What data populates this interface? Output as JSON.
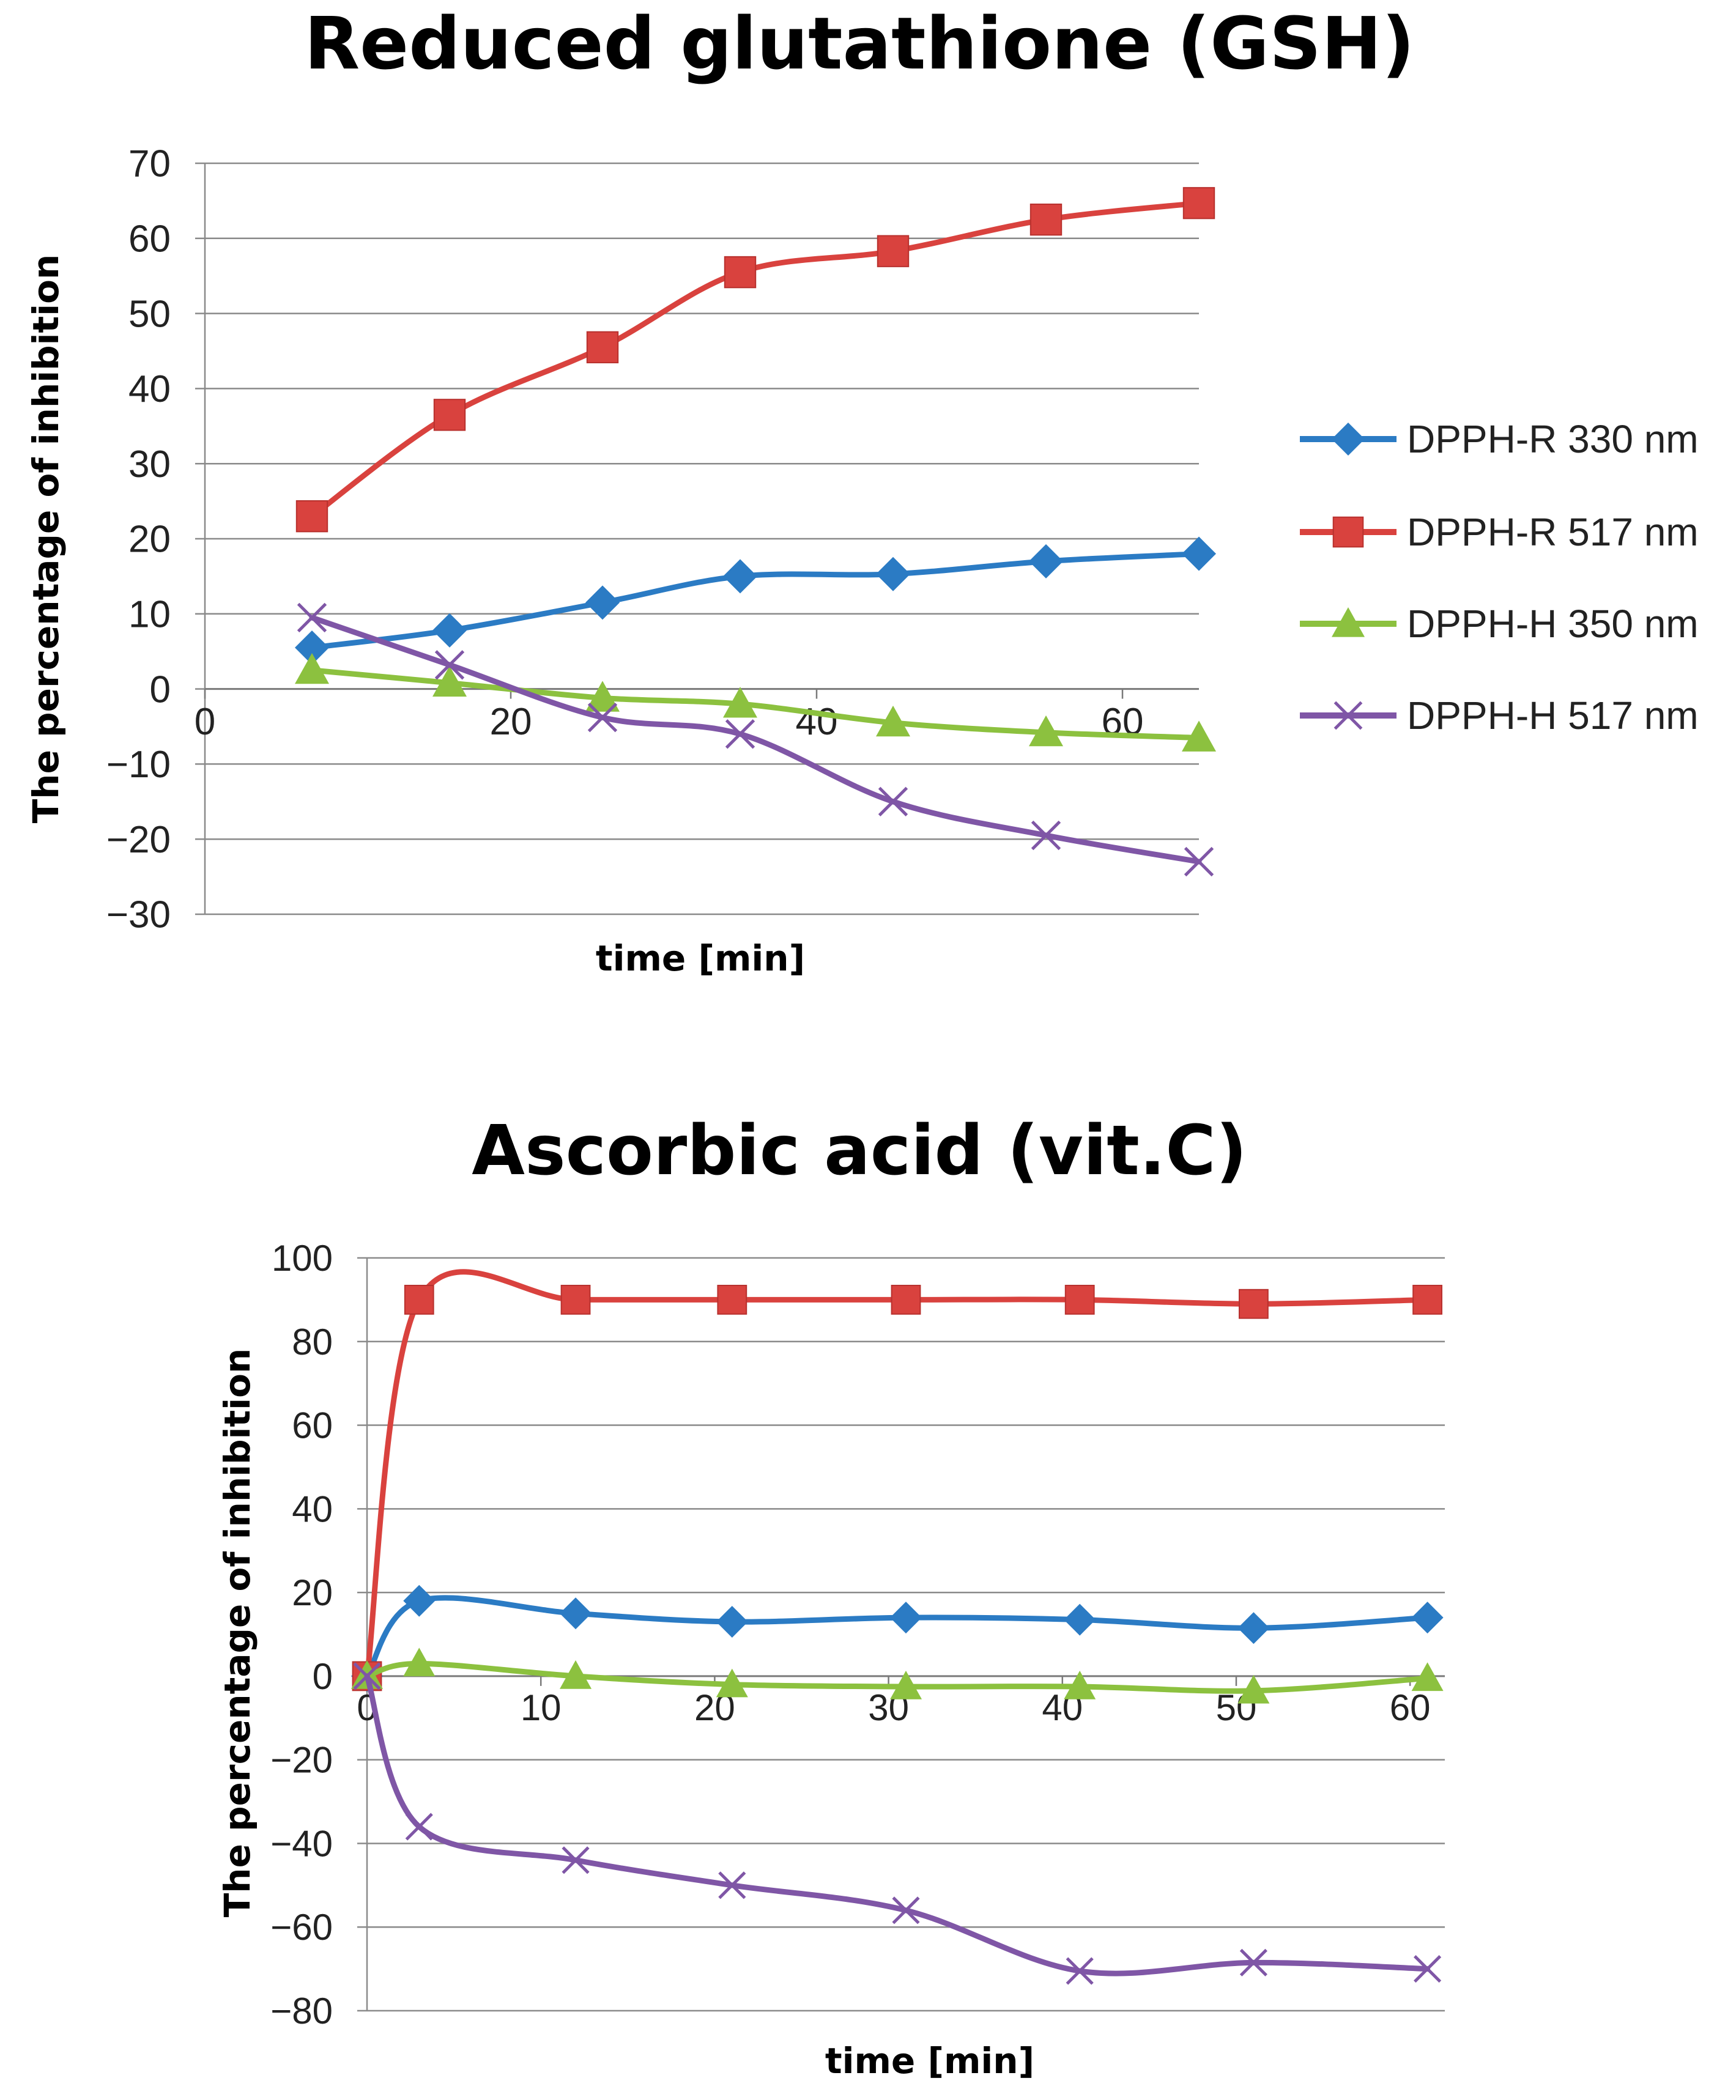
{
  "chart_data": [
    {
      "type": "line",
      "title": "Reduced glutathione (GSH)",
      "xlabel": "time  [min]",
      "ylabel": "The percentage of inhibition",
      "xlim": [
        0,
        65
      ],
      "ylim": [
        -30,
        70
      ],
      "yticks": [
        70,
        60,
        50,
        40,
        30,
        20,
        10,
        0,
        -10,
        -20,
        -30
      ],
      "xticks": [
        0,
        20,
        40,
        60
      ],
      "grid": true,
      "smooth": true,
      "legend": "right",
      "x": [
        7,
        16,
        26,
        35,
        45,
        55,
        65
      ],
      "series": [
        {
          "name": "DPPH-R 330 nm",
          "color": "#2b7bc4",
          "marker": "diamond",
          "values": [
            5.5,
            7.8,
            11.5,
            15,
            15.3,
            17,
            18
          ]
        },
        {
          "name": "DPPH-R 517 nm",
          "color": "#d9423e",
          "marker": "square",
          "values": [
            23,
            36.5,
            45.5,
            55.5,
            58.3,
            62.5,
            64.7
          ]
        },
        {
          "name": "DPPH-H 350 nm",
          "color": "#8cc13f",
          "marker": "triangle",
          "values": [
            2.5,
            0.8,
            -1.2,
            -2,
            -4.5,
            -5.8,
            -6.5
          ]
        },
        {
          "name": "DPPH-H 517 nm",
          "color": "#7f56a6",
          "marker": "cross",
          "values": [
            9.5,
            3.2,
            -3.8,
            -6,
            -15,
            -19.5,
            -23
          ]
        }
      ]
    },
    {
      "type": "line",
      "title": "Ascorbic acid (vit.C)",
      "xlabel": "time [min]",
      "ylabel": "The percentage of inhibition",
      "xlim": [
        0,
        62
      ],
      "ylim": [
        -80,
        100
      ],
      "yticks": [
        100,
        80,
        60,
        40,
        20,
        0,
        -20,
        -40,
        -60,
        -80
      ],
      "xticks": [
        0,
        10,
        20,
        30,
        40,
        50,
        60
      ],
      "grid": true,
      "smooth": true,
      "x": [
        0,
        3,
        12,
        21,
        31,
        41,
        51,
        61
      ],
      "series": [
        {
          "name": "DPPH-R 330 nm",
          "color": "#2b7bc4",
          "marker": "diamond",
          "values": [
            0,
            18,
            15,
            13,
            14,
            13.5,
            11.5,
            14
          ]
        },
        {
          "name": "DPPH-R 517 nm",
          "color": "#d9423e",
          "marker": "square",
          "values": [
            0,
            90,
            90,
            90,
            90,
            90,
            89,
            90
          ]
        },
        {
          "name": "DPPH-H 350 nm",
          "color": "#8cc13f",
          "marker": "triangle",
          "values": [
            0,
            3,
            0,
            -2,
            -2.5,
            -2.5,
            -3.5,
            -0.5
          ]
        },
        {
          "name": "DPPH-H 517 nm",
          "color": "#7f56a6",
          "marker": "cross",
          "values": [
            0,
            -36,
            -44,
            -50,
            -56,
            -70.5,
            -68.5,
            -70
          ]
        }
      ]
    }
  ]
}
